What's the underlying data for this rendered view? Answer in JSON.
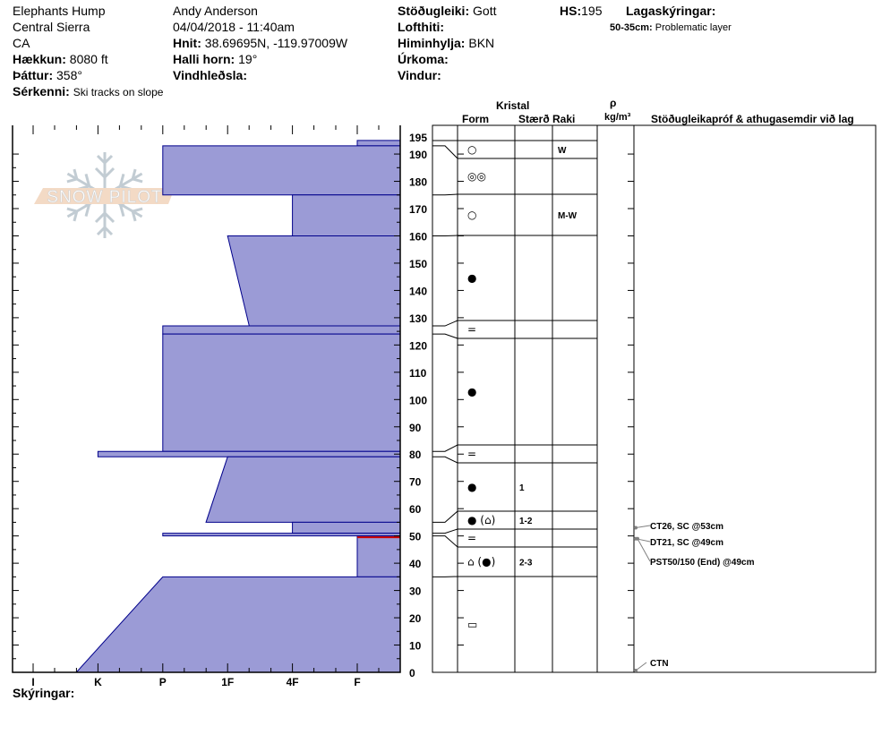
{
  "header": {
    "location": "Elephants Hump",
    "range": "Central Sierra",
    "state": "CA",
    "elevation_label": "Hækkun:",
    "elevation": "8080 ft",
    "aspect_label": "Þáttur:",
    "aspect": "358°",
    "features_label": "Sérkenni:",
    "features": "Ski tracks on slope",
    "observer": "Andy Anderson",
    "datetime": "04/04/2018 - 11:40am",
    "coords_label": "Hnit:",
    "coords": "38.69695N, -119.97009W",
    "slope_label": "Halli horn:",
    "slope": "19°",
    "wind_loading_label": "Vindhleðsla:",
    "stability_label": "Stöðugleiki:",
    "stability": "Gott",
    "air_temp_label": "Lofthiti:",
    "sky_label": "Himinhylja:",
    "sky": "BKN",
    "precip_label": "Úrkoma:",
    "wind_label": "Vindur:",
    "hs_label": "HS:",
    "hs": "195",
    "layer_notes_label": "Lagaskýringar:",
    "layer_note_range": "50-35cm:",
    "layer_note_text": "Problematic layer"
  },
  "table_headers": {
    "crystal": "Kristal",
    "form": "Form",
    "size": "Stærð",
    "moisture": "Raki",
    "rho": "ρ",
    "density_unit": "kg/m³",
    "tests": "Stöðugleikapróf & athugasemdir við lag"
  },
  "legend_label": "Skýringar:",
  "watermark": "SNOW PILOT",
  "colors": {
    "layer_fill": "#9b9bd6",
    "layer_stroke": "#00008b",
    "critical": "#cc0000",
    "arrow": "#808080"
  },
  "chart_data": {
    "type": "snow-profile",
    "depth_unit": "cm",
    "ylim": [
      0,
      195
    ],
    "y_ticks": [
      0,
      10,
      20,
      30,
      40,
      50,
      60,
      70,
      80,
      90,
      100,
      110,
      120,
      130,
      140,
      150,
      160,
      170,
      180,
      190,
      195
    ],
    "hardness_ticks": [
      "I",
      "K",
      "P",
      "1F",
      "4F",
      "F"
    ],
    "layers": [
      {
        "top": 195,
        "bottom": 193,
        "hardness_top": "F",
        "hardness_bottom": "F"
      },
      {
        "top": 193,
        "bottom": 175,
        "hardness_top": "P",
        "hardness_bottom": "P"
      },
      {
        "top": 175,
        "bottom": 160,
        "hardness_top": "4F",
        "hardness_bottom": "4F"
      },
      {
        "top": 160,
        "bottom": 127,
        "hardness_top": "1F",
        "hardness_bottom": "1F-"
      },
      {
        "top": 127,
        "bottom": 124,
        "hardness_top": "P",
        "hardness_bottom": "P"
      },
      {
        "top": 124,
        "bottom": 81,
        "hardness_top": "P",
        "hardness_bottom": "P"
      },
      {
        "top": 81,
        "bottom": 79,
        "hardness_top": "K",
        "hardness_bottom": "K"
      },
      {
        "top": 79,
        "bottom": 55,
        "hardness_top": "1F",
        "hardness_bottom": "1F+"
      },
      {
        "top": 55,
        "bottom": 51,
        "hardness_top": "4F",
        "hardness_bottom": "4F"
      },
      {
        "top": 51,
        "bottom": 50,
        "hardness_top": "P",
        "hardness_bottom": "P"
      },
      {
        "top": 50,
        "bottom": 35,
        "hardness_top": "F",
        "hardness_bottom": "F",
        "critical_at": 49.5
      },
      {
        "top": 35,
        "bottom": 0,
        "hardness_top": "P",
        "hardness_bottom": "K+"
      }
    ],
    "crystal_rows": [
      {
        "form": "○",
        "size": "",
        "moisture": "W"
      },
      {
        "form": "◎◎",
        "size": "",
        "moisture": ""
      },
      {
        "form": "○",
        "size": "",
        "moisture": "M-W"
      },
      {
        "form": "●",
        "size": "",
        "moisture": ""
      },
      {
        "form": "=",
        "size": "",
        "moisture": ""
      },
      {
        "form": "●",
        "size": "",
        "moisture": ""
      },
      {
        "form": "=",
        "size": "",
        "moisture": ""
      },
      {
        "form": "●",
        "size": "1",
        "moisture": ""
      },
      {
        "form": "● (⌂)",
        "size": "1-2",
        "moisture": ""
      },
      {
        "form": "=",
        "size": "",
        "moisture": ""
      },
      {
        "form": "⌂ (●)",
        "size": "2-3",
        "moisture": ""
      },
      {
        "form": "▭",
        "size": "",
        "moisture": ""
      }
    ],
    "tests": [
      {
        "depth": 53,
        "text": "CT26, SC @53cm"
      },
      {
        "depth": 49,
        "text": "DT21, SC @49cm"
      },
      {
        "depth": 49,
        "text": "PST50/150 (End) @49cm"
      },
      {
        "depth": 0,
        "text": "CTN"
      }
    ]
  }
}
